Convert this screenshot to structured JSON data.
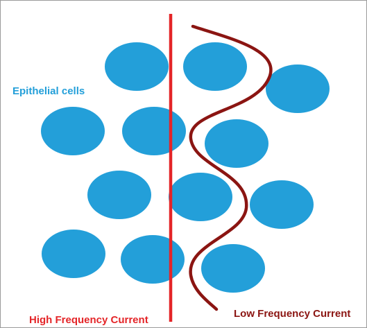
{
  "labels": {
    "cells": "Epithelial cells",
    "high": "High Frequency Current",
    "low": "Low Frequency Current"
  }
}
